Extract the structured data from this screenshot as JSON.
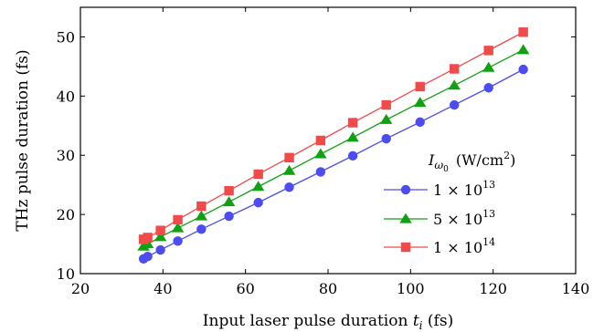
{
  "chart_data": {
    "type": "line",
    "xlabel": "Input laser pulse duration t_i (fs)",
    "xlabel_parts": {
      "main": "Input laser pulse duration ",
      "var": "t",
      "sub": "i",
      "unit": " (fs)"
    },
    "ylabel": "THz pulse duration (fs)",
    "xlim": [
      20,
      140
    ],
    "ylim": [
      10,
      55
    ],
    "xticks": [
      20,
      40,
      60,
      80,
      100,
      120,
      140
    ],
    "yticks": [
      10,
      20,
      30,
      40,
      50
    ],
    "grid": false,
    "legend": {
      "placement": "right",
      "title": "I_ω0 (W/cm²)",
      "title_parts": {
        "var": "I",
        "sub": "ω",
        "subsub": "0",
        "unit": "(W/cm",
        "sup": "2",
        "close": ")"
      },
      "entries": [
        {
          "mantissa": "1",
          "times": "×",
          "base": "10",
          "exp": "13"
        },
        {
          "mantissa": "5",
          "times": "×",
          "base": "10",
          "exp": "13"
        },
        {
          "mantissa": "1",
          "times": "×",
          "base": "10",
          "exp": "14"
        }
      ]
    },
    "x": [
      35.3,
      36.3,
      39.4,
      43.6,
      49.3,
      56.0,
      63.1,
      70.6,
      78.2,
      86.0,
      94.1,
      102.3,
      110.6,
      118.9,
      127.3
    ],
    "series": [
      {
        "color": "#4c4cf0",
        "marker": "circle",
        "values": [
          12.5,
          12.9,
          14.0,
          15.5,
          17.5,
          19.7,
          22.0,
          24.6,
          27.2,
          29.9,
          32.8,
          35.6,
          38.5,
          41.4,
          44.5
        ]
      },
      {
        "color": "#11a011",
        "marker": "triangle",
        "values": [
          14.6,
          15.0,
          16.2,
          17.7,
          19.7,
          22.1,
          24.7,
          27.4,
          30.2,
          33.0,
          36.0,
          38.9,
          41.8,
          44.8,
          47.8
        ]
      },
      {
        "color": "#f04a4a",
        "marker": "square",
        "values": [
          15.8,
          16.1,
          17.3,
          19.1,
          21.4,
          24.0,
          26.8,
          29.6,
          32.5,
          35.5,
          38.5,
          41.6,
          44.6,
          47.7,
          50.8
        ]
      }
    ]
  }
}
